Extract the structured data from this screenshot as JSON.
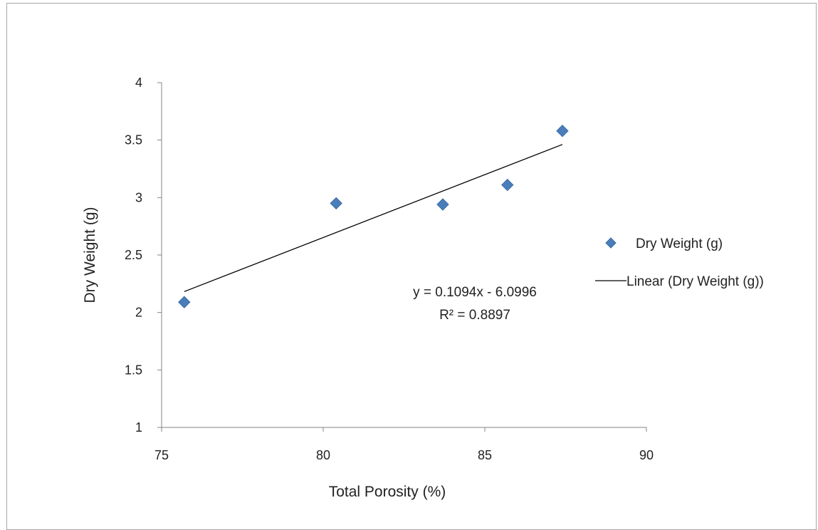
{
  "chart_data": {
    "type": "scatter",
    "xlabel": "Total Porosity (%)",
    "ylabel": "Dry Weight (g)",
    "xlim": [
      75,
      90
    ],
    "ylim": [
      1,
      4
    ],
    "xticks": [
      75,
      80,
      85,
      90
    ],
    "yticks": [
      1,
      1.5,
      2,
      2.5,
      3,
      3.5,
      4
    ],
    "xtick_labels": [
      "75",
      "80",
      "85",
      "90"
    ],
    "ytick_labels": [
      "1",
      "1.5",
      "2",
      "2.5",
      "3",
      "3.5",
      "4"
    ],
    "grid": false,
    "legend_placement": "right",
    "series": [
      {
        "name": "Dry Weight (g)",
        "color": "#4a7ebb",
        "marker": "diamond",
        "points": [
          {
            "x": 75.7,
            "y": 2.09
          },
          {
            "x": 80.4,
            "y": 2.95
          },
          {
            "x": 83.7,
            "y": 2.94
          },
          {
            "x": 85.7,
            "y": 3.11
          },
          {
            "x": 87.4,
            "y": 3.58
          }
        ]
      }
    ],
    "trendline": {
      "name": "Linear (Dry Weight (g))",
      "color": "#000000",
      "slope": 0.1094,
      "intercept": -6.0996,
      "x_range": [
        75.7,
        87.4
      ],
      "equation": "y = 0.1094x - 6.0996",
      "r_squared": "R² = 0.8897"
    }
  }
}
